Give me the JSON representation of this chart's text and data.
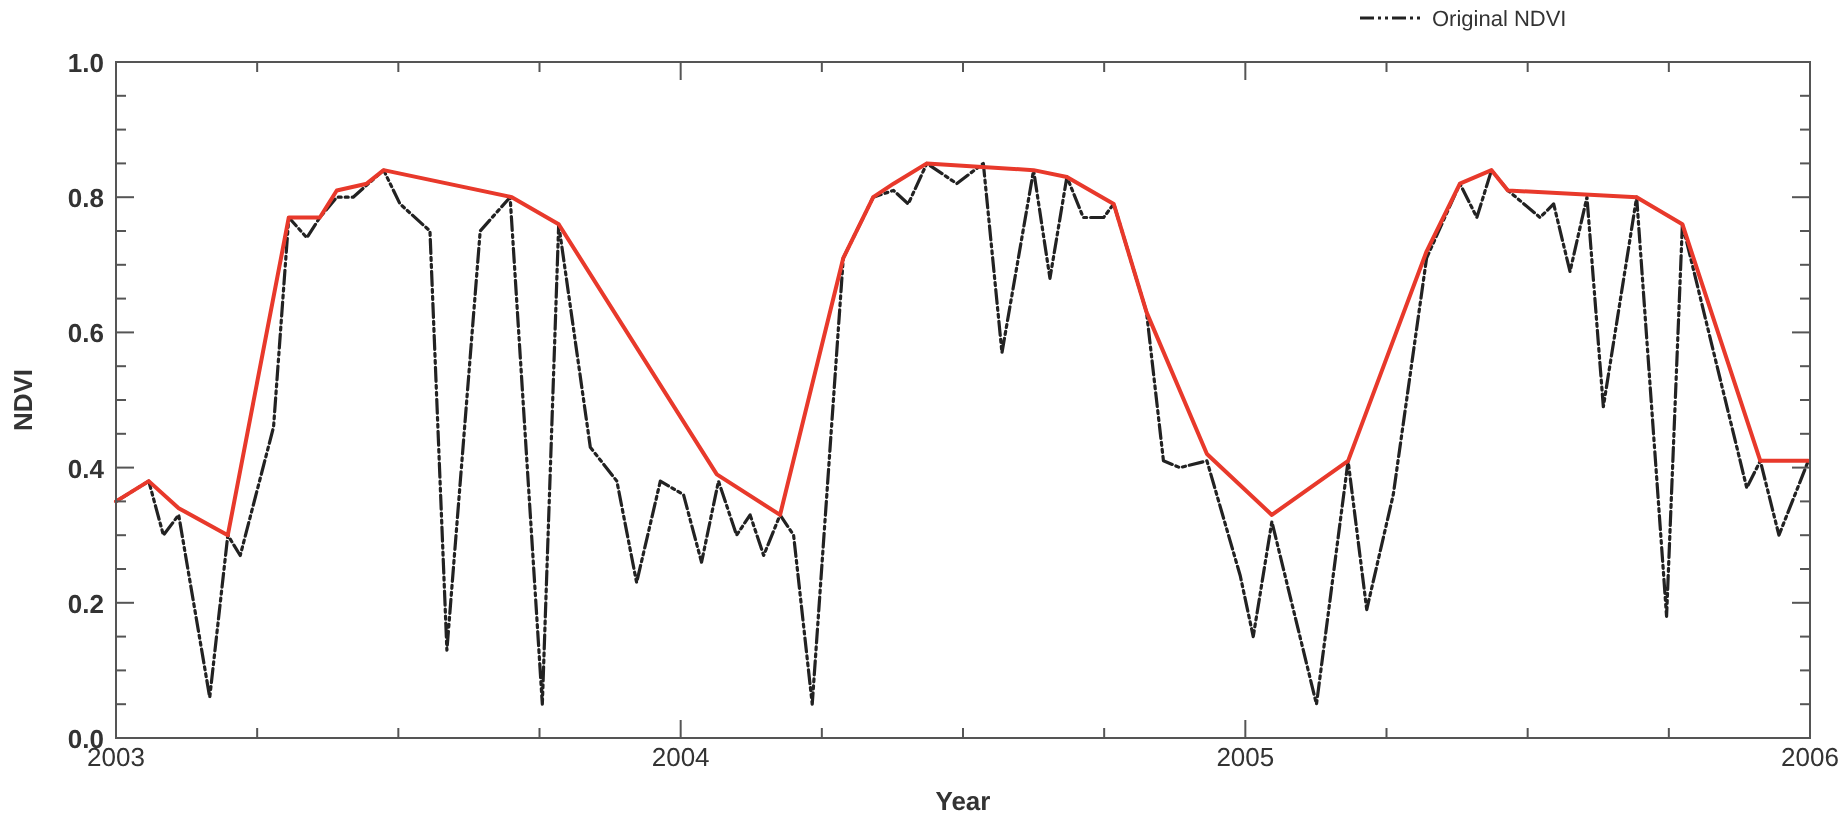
{
  "chart_data": {
    "type": "line",
    "xlabel": "Year",
    "ylabel": "NDVI",
    "legend": "top right",
    "xlim": [
      2003,
      2006
    ],
    "ylim": [
      0,
      1
    ],
    "xticks": [
      2003,
      {
        "value": 2003.25,
        "label": null
      },
      {
        "value": 2003.5,
        "label": null
      },
      {
        "value": 2003.75,
        "label": null
      },
      2004,
      {
        "value": 2004.25,
        "label": null
      },
      {
        "value": 2004.5,
        "label": null
      },
      {
        "value": 2004.75,
        "label": null
      },
      2005,
      {
        "value": 2005.25,
        "label": null
      },
      {
        "value": 2005.5,
        "label": null
      },
      {
        "value": 2005.75,
        "label": null
      },
      2006
    ],
    "yticks": [
      {
        "value": 0,
        "label": "0.0"
      },
      {
        "value": 0.05,
        "label": null
      },
      {
        "value": 0.1,
        "label": null
      },
      {
        "value": 0.15,
        "label": null
      },
      0.2,
      {
        "value": 0.25,
        "label": null
      },
      {
        "value": 0.3,
        "label": null
      },
      {
        "value": 0.35,
        "label": null
      },
      0.4,
      {
        "value": 0.45,
        "label": null
      },
      {
        "value": 0.5,
        "label": null
      },
      {
        "value": 0.55,
        "label": null
      },
      0.6,
      {
        "value": 0.65,
        "label": null
      },
      {
        "value": 0.7,
        "label": null
      },
      {
        "value": 0.75,
        "label": null
      },
      0.8,
      {
        "value": 0.85,
        "label": null
      },
      {
        "value": 0.9,
        "label": null
      },
      {
        "value": 0.95,
        "label": null
      },
      {
        "value": 1,
        "label": "1.0"
      }
    ],
    "series": [
      {
        "name": "Original NDVI",
        "color": "#222222",
        "line_style": "dashed",
        "x": [
          2003.0,
          2003.058,
          2003.084,
          2003.111,
          2003.166,
          2003.198,
          2003.22,
          2003.279,
          2003.306,
          2003.338,
          2003.361,
          2003.391,
          2003.42,
          2003.474,
          2003.503,
          2003.556,
          2003.586,
          2003.645,
          2003.698,
          2003.755,
          2003.784,
          2003.84,
          2003.887,
          2003.922,
          2003.964,
          2004.005,
          2004.037,
          2004.067,
          2004.099,
          2004.123,
          2004.147,
          2004.176,
          2004.2,
          2004.233,
          2004.288,
          2004.341,
          2004.377,
          2004.403,
          2004.436,
          2004.489,
          2004.536,
          2004.569,
          2004.625,
          2004.654,
          2004.684,
          2004.713,
          2004.749,
          2004.767,
          2004.825,
          2004.855,
          2004.884,
          2004.932,
          2004.991,
          2005.014,
          2005.047,
          2005.126,
          2005.182,
          2005.215,
          2005.262,
          2005.321,
          2005.38,
          2005.41,
          2005.436,
          2005.465,
          2005.522,
          2005.546,
          2005.575,
          2005.605,
          2005.634,
          2005.693,
          2005.746,
          2005.774,
          2005.888,
          2005.912,
          2005.945,
          2005.997
        ],
        "values": [
          0.35,
          0.38,
          0.3,
          0.33,
          0.06,
          0.3,
          0.27,
          0.46,
          0.77,
          0.74,
          0.77,
          0.8,
          0.8,
          0.84,
          0.79,
          0.75,
          0.13,
          0.75,
          0.8,
          0.05,
          0.76,
          0.43,
          0.38,
          0.23,
          0.38,
          0.36,
          0.26,
          0.38,
          0.3,
          0.33,
          0.27,
          0.33,
          0.3,
          0.05,
          0.71,
          0.8,
          0.81,
          0.79,
          0.85,
          0.82,
          0.85,
          0.57,
          0.84,
          0.68,
          0.83,
          0.77,
          0.77,
          0.79,
          0.63,
          0.41,
          0.4,
          0.41,
          0.24,
          0.15,
          0.32,
          0.05,
          0.41,
          0.19,
          0.36,
          0.71,
          0.82,
          0.77,
          0.84,
          0.81,
          0.77,
          0.79,
          0.69,
          0.8,
          0.49,
          0.8,
          0.18,
          0.76,
          0.37,
          0.41,
          0.3,
          0.41
        ]
      },
      {
        "color": "#e8392b",
        "line_style": "solid",
        "x": [
          2003.0,
          2003.058,
          2003.111,
          2003.198,
          2003.306,
          2003.361,
          2003.391,
          2003.444,
          2003.474,
          2003.701,
          2003.784,
          2004.064,
          2004.176,
          2004.288,
          2004.341,
          2004.377,
          2004.436,
          2004.625,
          2004.684,
          2004.767,
          2004.825,
          2004.932,
          2005.047,
          2005.182,
          2005.321,
          2005.38,
          2005.436,
          2005.465,
          2005.693,
          2005.774,
          2005.912,
          2005.997
        ],
        "values": [
          0.35,
          0.38,
          0.34,
          0.3,
          0.77,
          0.77,
          0.81,
          0.82,
          0.84,
          0.8,
          0.76,
          0.39,
          0.33,
          0.71,
          0.8,
          0.82,
          0.85,
          0.84,
          0.83,
          0.79,
          0.63,
          0.42,
          0.33,
          0.41,
          0.72,
          0.82,
          0.84,
          0.81,
          0.8,
          0.76,
          0.41,
          0.41
        ]
      }
    ]
  }
}
